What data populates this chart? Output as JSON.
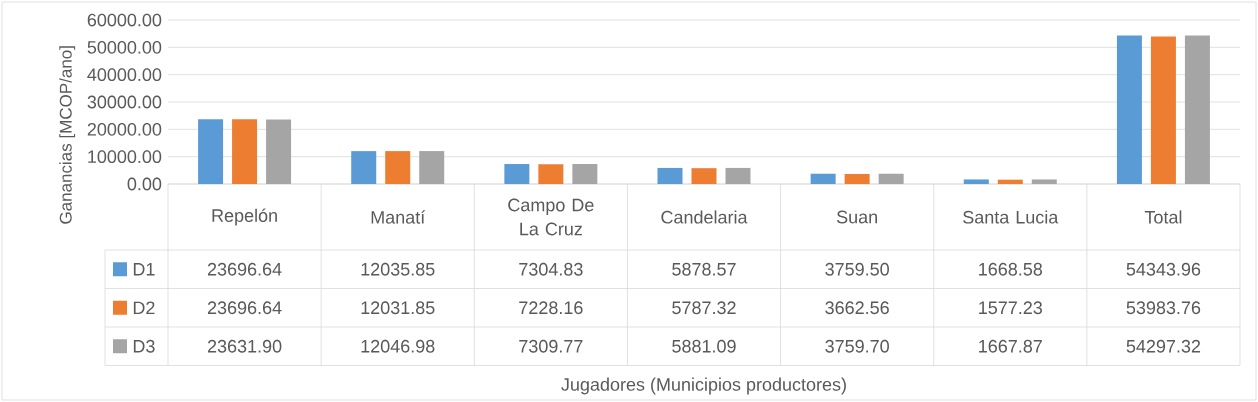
{
  "chart_data": {
    "type": "bar",
    "annotations": [
      "Jugadores (Municipios productores)"
    ],
    "ylabel": "Ganancias [MCOP/ano]",
    "categories": [
      "Repelón",
      "Manatí",
      "Campo De La Cruz",
      "Candelaria",
      "Suan",
      "Santa Lucia",
      "Total"
    ],
    "series": [
      {
        "name": "D1",
        "color": "#5b9bd5",
        "values": [
          23696.64,
          12035.85,
          7304.83,
          5878.57,
          3759.5,
          1668.58,
          54343.96
        ],
        "value_labels": [
          "23696.64",
          "12035.85",
          "7304.83",
          "5878.57",
          "3759.50",
          "1668.58",
          "54343.96"
        ]
      },
      {
        "name": "D2",
        "color": "#ed7d31",
        "values": [
          23696.64,
          12031.85,
          7228.16,
          5787.32,
          3662.56,
          1577.23,
          53983.76
        ],
        "value_labels": [
          "23696.64",
          "12031.85",
          "7228.16",
          "5787.32",
          "3662.56",
          "1577.23",
          "53983.76"
        ]
      },
      {
        "name": "D3",
        "color": "#a5a5a5",
        "values": [
          23631.9,
          12046.98,
          7309.77,
          5881.09,
          3759.7,
          1667.87,
          54297.32
        ],
        "value_labels": [
          "23631.90",
          "12046.98",
          "7309.77",
          "5881.09",
          "3759.70",
          "1667.87",
          "54297.32"
        ]
      }
    ],
    "ylim": [
      0,
      60000
    ],
    "yticks": [
      {
        "value": 0,
        "label": "0.00"
      },
      {
        "value": 10000,
        "label": "10000.00"
      },
      {
        "value": 20000,
        "label": "20000.00"
      },
      {
        "value": 30000,
        "label": "30000.00"
      },
      {
        "value": 40000,
        "label": "40000.00"
      },
      {
        "value": 50000,
        "label": "50000.00"
      },
      {
        "value": 60000,
        "label": "60000.00"
      }
    ],
    "grid": "y",
    "legend": "bottom"
  }
}
